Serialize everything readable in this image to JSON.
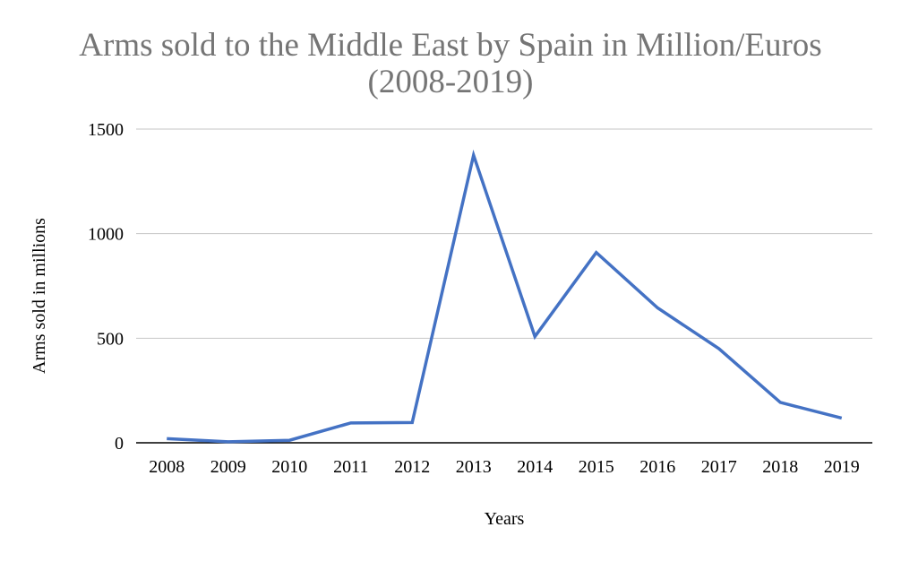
{
  "chart_data": {
    "type": "line",
    "title_lines": [
      "Arms sold to the Middle East by Spain in Million/Euros",
      "(2008-2019)"
    ],
    "xlabel": "Years",
    "ylabel": "Arms sold in millions",
    "categories": [
      "2008",
      "2009",
      "2010",
      "2011",
      "2012",
      "2013",
      "2014",
      "2015",
      "2016",
      "2017",
      "2018",
      "2019"
    ],
    "series": [
      {
        "values": [
          20,
          5,
          12,
          95,
          97,
          1375,
          508,
          910,
          645,
          450,
          193,
          118
        ]
      }
    ],
    "ylim": [
      0,
      1500
    ],
    "yticks": [
      0,
      500,
      1000,
      1500
    ],
    "grid": true,
    "legend": "none",
    "colors": {
      "line": "#4472C4",
      "grid": "#C6C6C6",
      "axis": "#000000",
      "title": "#757575"
    }
  }
}
